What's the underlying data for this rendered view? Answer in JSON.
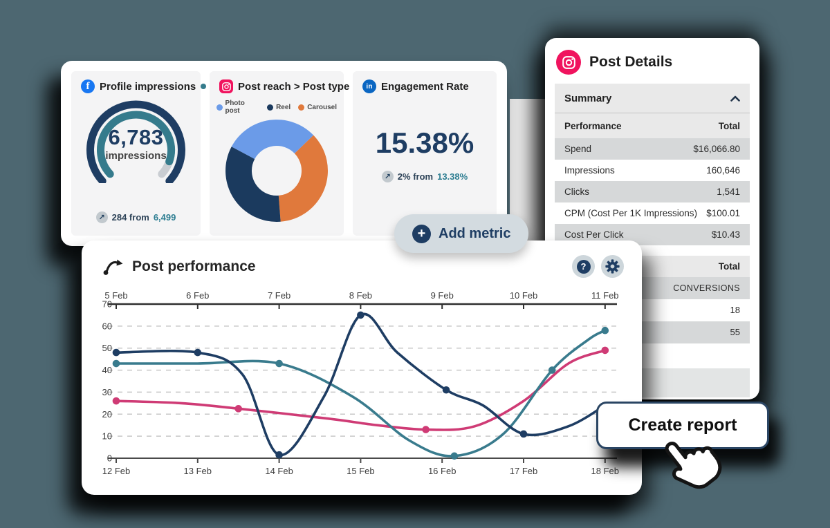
{
  "colors": {
    "background": "#4d6771",
    "navy": "#1e3d63",
    "teal_accent": "#357b8c",
    "pink": "#cf3b75",
    "light_blue": "#6b9be8",
    "orange": "#e0793c",
    "facebook": "#1877f2",
    "linkedin": "#0a66c2",
    "instagram": "#f0135e",
    "pill": "#d3dbe0",
    "row_gray": "#d6d8d9",
    "header_gray": "#e9e9e9"
  },
  "glyphs": {
    "help": "?",
    "plus": "+",
    "trend_arrow": "↗",
    "facebook_f": "f",
    "linkedin_in": "in"
  },
  "metrics": {
    "profile": {
      "platform": "Facebook",
      "title": "Profile impressions",
      "value": "6,783",
      "unit": "impressions",
      "delta_prefix": "284 from",
      "delta_reference": "6,499"
    },
    "post_reach": {
      "platform": "Instagram",
      "title": "Post reach > Post type",
      "legend": [
        {
          "label": "Photo post",
          "color": "#6b9be8"
        },
        {
          "label": "Reel",
          "color": "#1b3a5e"
        },
        {
          "label": "Carousel",
          "color": "#e0793c"
        }
      ]
    },
    "engagement": {
      "platform": "LinkedIn",
      "title": "Engagement Rate",
      "value": "15.38%",
      "delta_prefix": "2% from",
      "delta_reference": "13.38%"
    }
  },
  "add_metric": {
    "label": "Add metric"
  },
  "post_performance": {
    "title": "Post performance"
  },
  "post_details": {
    "title": "Post Details",
    "summary_label": "Summary",
    "columns": {
      "label": "Performance",
      "value": "Total"
    },
    "performance_rows": [
      [
        "Spend",
        "$16,066.80"
      ],
      [
        "Impressions",
        "160,646"
      ],
      [
        "Clicks",
        "1,541"
      ],
      [
        "CPM (Cost Per 1K Impressions)",
        "$100.01"
      ],
      [
        "Cost Per Click",
        "$10.43"
      ]
    ],
    "conversions": {
      "header": "Total",
      "rows": [
        "CONVERSIONS",
        "18",
        "55"
      ]
    }
  },
  "create_report": {
    "label": "Create report"
  },
  "chart_data": [
    {
      "id": "profile_impressions_gauge",
      "type": "gauge",
      "title": "Profile impressions",
      "value": 6783,
      "previous": 6499,
      "fraction": 0.91,
      "start_angle": -133,
      "end_angle": 133,
      "colors": {
        "outer": "#1e3d63",
        "inner": "#357b8c",
        "remainder": "#c9cdd2"
      }
    },
    {
      "id": "post_reach_donut",
      "type": "pie",
      "title": "Post reach > Post type",
      "start_angle": -62,
      "segments": [
        {
          "label": "Photo post",
          "value": 30,
          "color": "#6b9be8"
        },
        {
          "label": "Carousel",
          "value": 36,
          "color": "#e0793c"
        },
        {
          "label": "Reel",
          "value": 34,
          "color": "#1b3a5e"
        }
      ]
    },
    {
      "id": "post_performance",
      "type": "line",
      "title": "Post performance",
      "x_top_labels": [
        "5 Feb",
        "6 Feb",
        "7 Feb",
        "8 Feb",
        "9 Feb",
        "10 Feb",
        "11 Feb"
      ],
      "x_bottom_labels": [
        "12 Feb",
        "13 Feb",
        "14 Feb",
        "15 Feb",
        "16 Feb",
        "17 Feb",
        "18 Feb"
      ],
      "ylim": [
        0,
        70
      ],
      "yticks": [
        0,
        10,
        20,
        30,
        40,
        50,
        60,
        70
      ],
      "grid": "dashed-horizontal",
      "series": [
        {
          "name": "pink",
          "color": "#cf3b75",
          "points": [
            [
              0,
              26
            ],
            [
              0.8,
              25
            ],
            [
              1.5,
              22.5
            ],
            [
              2.6,
              18
            ],
            [
              3.2,
              15
            ],
            [
              3.8,
              13
            ],
            [
              4.4,
              14.5
            ],
            [
              5,
              26
            ],
            [
              5.55,
              43
            ],
            [
              6,
              49
            ]
          ],
          "markers": [
            [
              0,
              26
            ],
            [
              1.5,
              22.5
            ],
            [
              3.8,
              13
            ],
            [
              6,
              49
            ]
          ]
        },
        {
          "name": "teal",
          "color": "#397b8d",
          "points": [
            [
              0,
              43
            ],
            [
              1,
              43
            ],
            [
              2,
              43
            ],
            [
              2.9,
              28
            ],
            [
              3.6,
              8
            ],
            [
              4.15,
              1
            ],
            [
              4.75,
              11
            ],
            [
              5.35,
              40
            ],
            [
              5.8,
              54
            ],
            [
              6,
              58
            ]
          ],
          "markers": [
            [
              0,
              43
            ],
            [
              2,
              43
            ],
            [
              4.15,
              1
            ],
            [
              5.35,
              40
            ],
            [
              6,
              58
            ]
          ]
        },
        {
          "name": "navy",
          "color": "#1e3d63",
          "points": [
            [
              0,
              48
            ],
            [
              1,
              48
            ],
            [
              1.55,
              38
            ],
            [
              2,
              1.5
            ],
            [
              2.55,
              28
            ],
            [
              3,
              65
            ],
            [
              3.45,
              48
            ],
            [
              4.05,
              31
            ],
            [
              4.5,
              24
            ],
            [
              5,
              11
            ],
            [
              5.55,
              14.5
            ],
            [
              6,
              24
            ]
          ],
          "markers": [
            [
              0,
              48
            ],
            [
              1,
              48
            ],
            [
              2,
              1.5
            ],
            [
              3,
              65
            ],
            [
              4.05,
              31
            ],
            [
              5,
              11
            ]
          ]
        }
      ]
    }
  ]
}
